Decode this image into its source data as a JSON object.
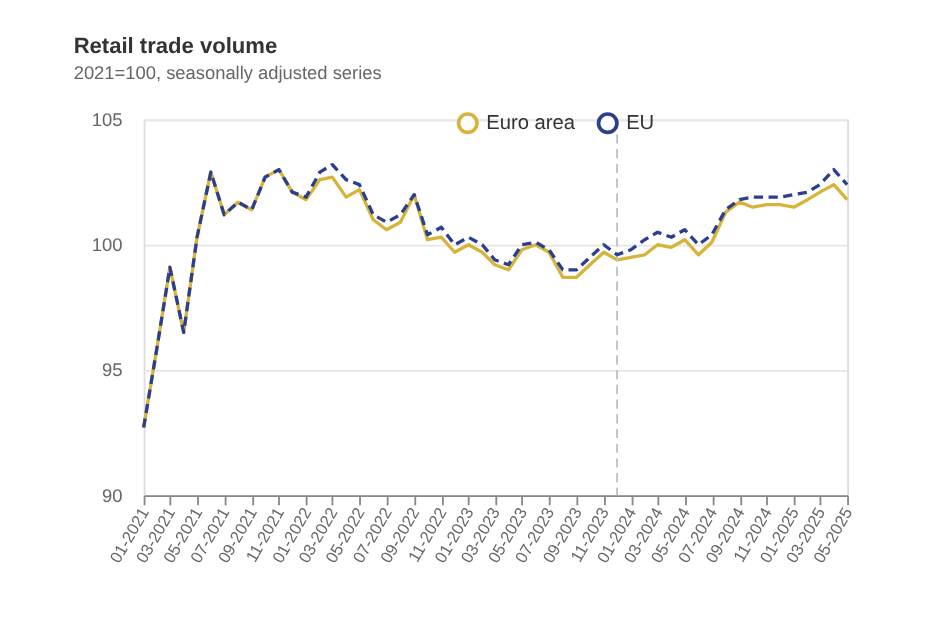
{
  "chart_data": {
    "type": "line",
    "title": "Retail trade volume",
    "subtitle": "2021=100, seasonally adjusted series",
    "x": [
      "2021-01",
      "2021-02",
      "2021-03",
      "2021-04",
      "2021-05",
      "2021-06",
      "2021-07",
      "2021-08",
      "2021-09",
      "2021-10",
      "2021-11",
      "2021-12",
      "2022-01",
      "2022-02",
      "2022-03",
      "2022-04",
      "2022-05",
      "2022-06",
      "2022-07",
      "2022-08",
      "2022-09",
      "2022-10",
      "2022-11",
      "2022-12",
      "2023-01",
      "2023-02",
      "2023-03",
      "2023-04",
      "2023-05",
      "2023-06",
      "2023-07",
      "2023-08",
      "2023-09",
      "2023-10",
      "2023-11",
      "2023-12",
      "2024-01",
      "2024-02",
      "2024-03",
      "2024-04",
      "2024-05",
      "2024-06",
      "2024-07",
      "2024-08",
      "2024-09",
      "2024-10",
      "2024-11",
      "2024-12",
      "2025-01",
      "2025-02",
      "2025-03",
      "2025-04",
      "2025-05"
    ],
    "series": [
      {
        "name": "Euro area",
        "color": "#d6b43a",
        "line_style": "solid",
        "values": [
          92.7,
          96.0,
          99.1,
          96.5,
          100.3,
          102.9,
          101.2,
          101.7,
          101.4,
          102.7,
          103.0,
          102.1,
          101.8,
          102.6,
          102.7,
          101.9,
          102.2,
          101.0,
          100.6,
          100.9,
          102.0,
          100.2,
          100.3,
          99.7,
          100.0,
          99.7,
          99.2,
          99.0,
          99.8,
          100.0,
          99.7,
          98.7,
          98.7,
          99.2,
          99.7,
          99.4,
          99.5,
          99.6,
          100.0,
          99.9,
          100.2,
          99.6,
          100.1,
          101.3,
          101.7,
          101.5,
          101.6,
          101.6,
          101.5,
          101.8,
          102.1,
          102.4,
          101.8
        ]
      },
      {
        "name": "EU",
        "color": "#2b3f8c",
        "line_style": "dashed",
        "values": [
          92.7,
          96.0,
          99.1,
          96.5,
          100.3,
          102.9,
          101.2,
          101.7,
          101.4,
          102.7,
          103.0,
          102.1,
          101.9,
          102.9,
          103.2,
          102.6,
          102.4,
          101.2,
          100.9,
          101.2,
          102.0,
          100.4,
          100.7,
          100.0,
          100.3,
          100.0,
          99.4,
          99.2,
          100.0,
          100.1,
          99.8,
          99.0,
          99.0,
          99.5,
          100.0,
          99.6,
          99.8,
          100.2,
          100.5,
          100.3,
          100.6,
          100.0,
          100.4,
          101.4,
          101.8,
          101.9,
          101.9,
          101.9,
          102.0,
          102.1,
          102.4,
          103.0,
          102.4
        ]
      }
    ],
    "xlim": [
      "2021-01",
      "2025-05"
    ],
    "xticks": [
      {
        "value": "2021-01",
        "label": "01-2021"
      },
      {
        "value": "2021-03",
        "label": "03-2021"
      },
      {
        "value": "2021-05",
        "label": "05-2021"
      },
      {
        "value": "2021-07",
        "label": "07-2021"
      },
      {
        "value": "2021-09",
        "label": "09-2021"
      },
      {
        "value": "2021-11",
        "label": "11-2021"
      },
      {
        "value": "2022-01",
        "label": "01-2022"
      },
      {
        "value": "2022-03",
        "label": "03-2022"
      },
      {
        "value": "2022-05",
        "label": "05-2022"
      },
      {
        "value": "2022-07",
        "label": "07-2022"
      },
      {
        "value": "2022-09",
        "label": "09-2022"
      },
      {
        "value": "2022-11",
        "label": "11-2022"
      },
      {
        "value": "2023-01",
        "label": "01-2023"
      },
      {
        "value": "2023-03",
        "label": "03-2023"
      },
      {
        "value": "2023-05",
        "label": "05-2023"
      },
      {
        "value": "2023-07",
        "label": "07-2023"
      },
      {
        "value": "2023-09",
        "label": "09-2023"
      },
      {
        "value": "2023-11",
        "label": "11-2023"
      },
      {
        "value": "2024-01",
        "label": "01-2024"
      },
      {
        "value": "2024-03",
        "label": "03-2024"
      },
      {
        "value": "2024-05",
        "label": "05-2024"
      },
      {
        "value": "2024-07",
        "label": "07-2024"
      },
      {
        "value": "2024-09",
        "label": "09-2024"
      },
      {
        "value": "2024-11",
        "label": "11-2024"
      },
      {
        "value": "2025-01",
        "label": "01-2025"
      },
      {
        "value": "2025-03",
        "label": "03-2025"
      },
      {
        "value": "2025-05",
        "label": "05-2025"
      }
    ],
    "ylim": [
      90,
      105
    ],
    "yticks": [
      90,
      95,
      100,
      105
    ],
    "grid": "y",
    "legend": "top",
    "marker": "none",
    "ref_lines": [
      {
        "axis": "x",
        "value": "2023-12",
        "color": "#b8c2cc",
        "line_style": "dashed"
      }
    ]
  }
}
